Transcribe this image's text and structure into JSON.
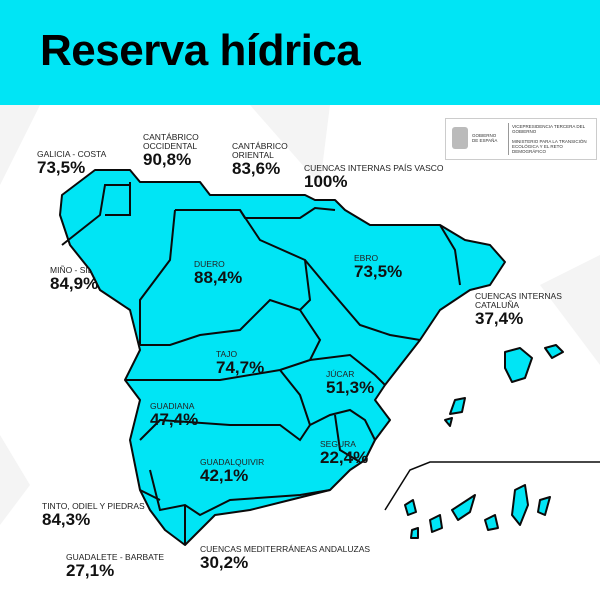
{
  "title": "Reserva hídrica",
  "colors": {
    "accent": "#00e5f5",
    "border": "#0a0a0a"
  },
  "logo": {
    "gobierno": "GOBIERNO DE ESPAÑA",
    "vicepresidencia": "VICEPRESIDENCIA TERCERA DEL GOBIERNO",
    "ministerio": "MINISTERIO PARA LA TRANSICIÓN ECOLÓGICA Y EL RETO DEMOGRÁFICO"
  },
  "basins": [
    {
      "name": "GALICIA - COSTA",
      "value": "73,5%"
    },
    {
      "name": "CANTÁBRICO\nOCCIDENTAL",
      "value": "90,8%"
    },
    {
      "name": "CANTÁBRICO\nORIENTAL",
      "value": "83,6%"
    },
    {
      "name": "CUENCAS INTERNAS PAÍS VASCO",
      "value": "100%"
    },
    {
      "name": "MIÑO - SIL",
      "value": "84,9%"
    },
    {
      "name": "DUERO",
      "value": "88,4%"
    },
    {
      "name": "EBRO",
      "value": "73,5%"
    },
    {
      "name": "CUENCAS INTERNAS\nCATALUÑA",
      "value": "37,4%"
    },
    {
      "name": "TAJO",
      "value": "74,7%"
    },
    {
      "name": "JÚCAR",
      "value": "51,3%"
    },
    {
      "name": "GUADIANA",
      "value": "47,4%"
    },
    {
      "name": "SEGURA",
      "value": "22,4%"
    },
    {
      "name": "GUADALQUIVIR",
      "value": "42,1%"
    },
    {
      "name": "TINTO, ODIEL Y PIEDRAS",
      "value": "84,3%"
    },
    {
      "name": "GUADALETE - BARBATE",
      "value": "27,1%"
    },
    {
      "name": "CUENCAS MEDITERRÁNEAS ANDALUZAS",
      "value": "30,2%"
    }
  ]
}
